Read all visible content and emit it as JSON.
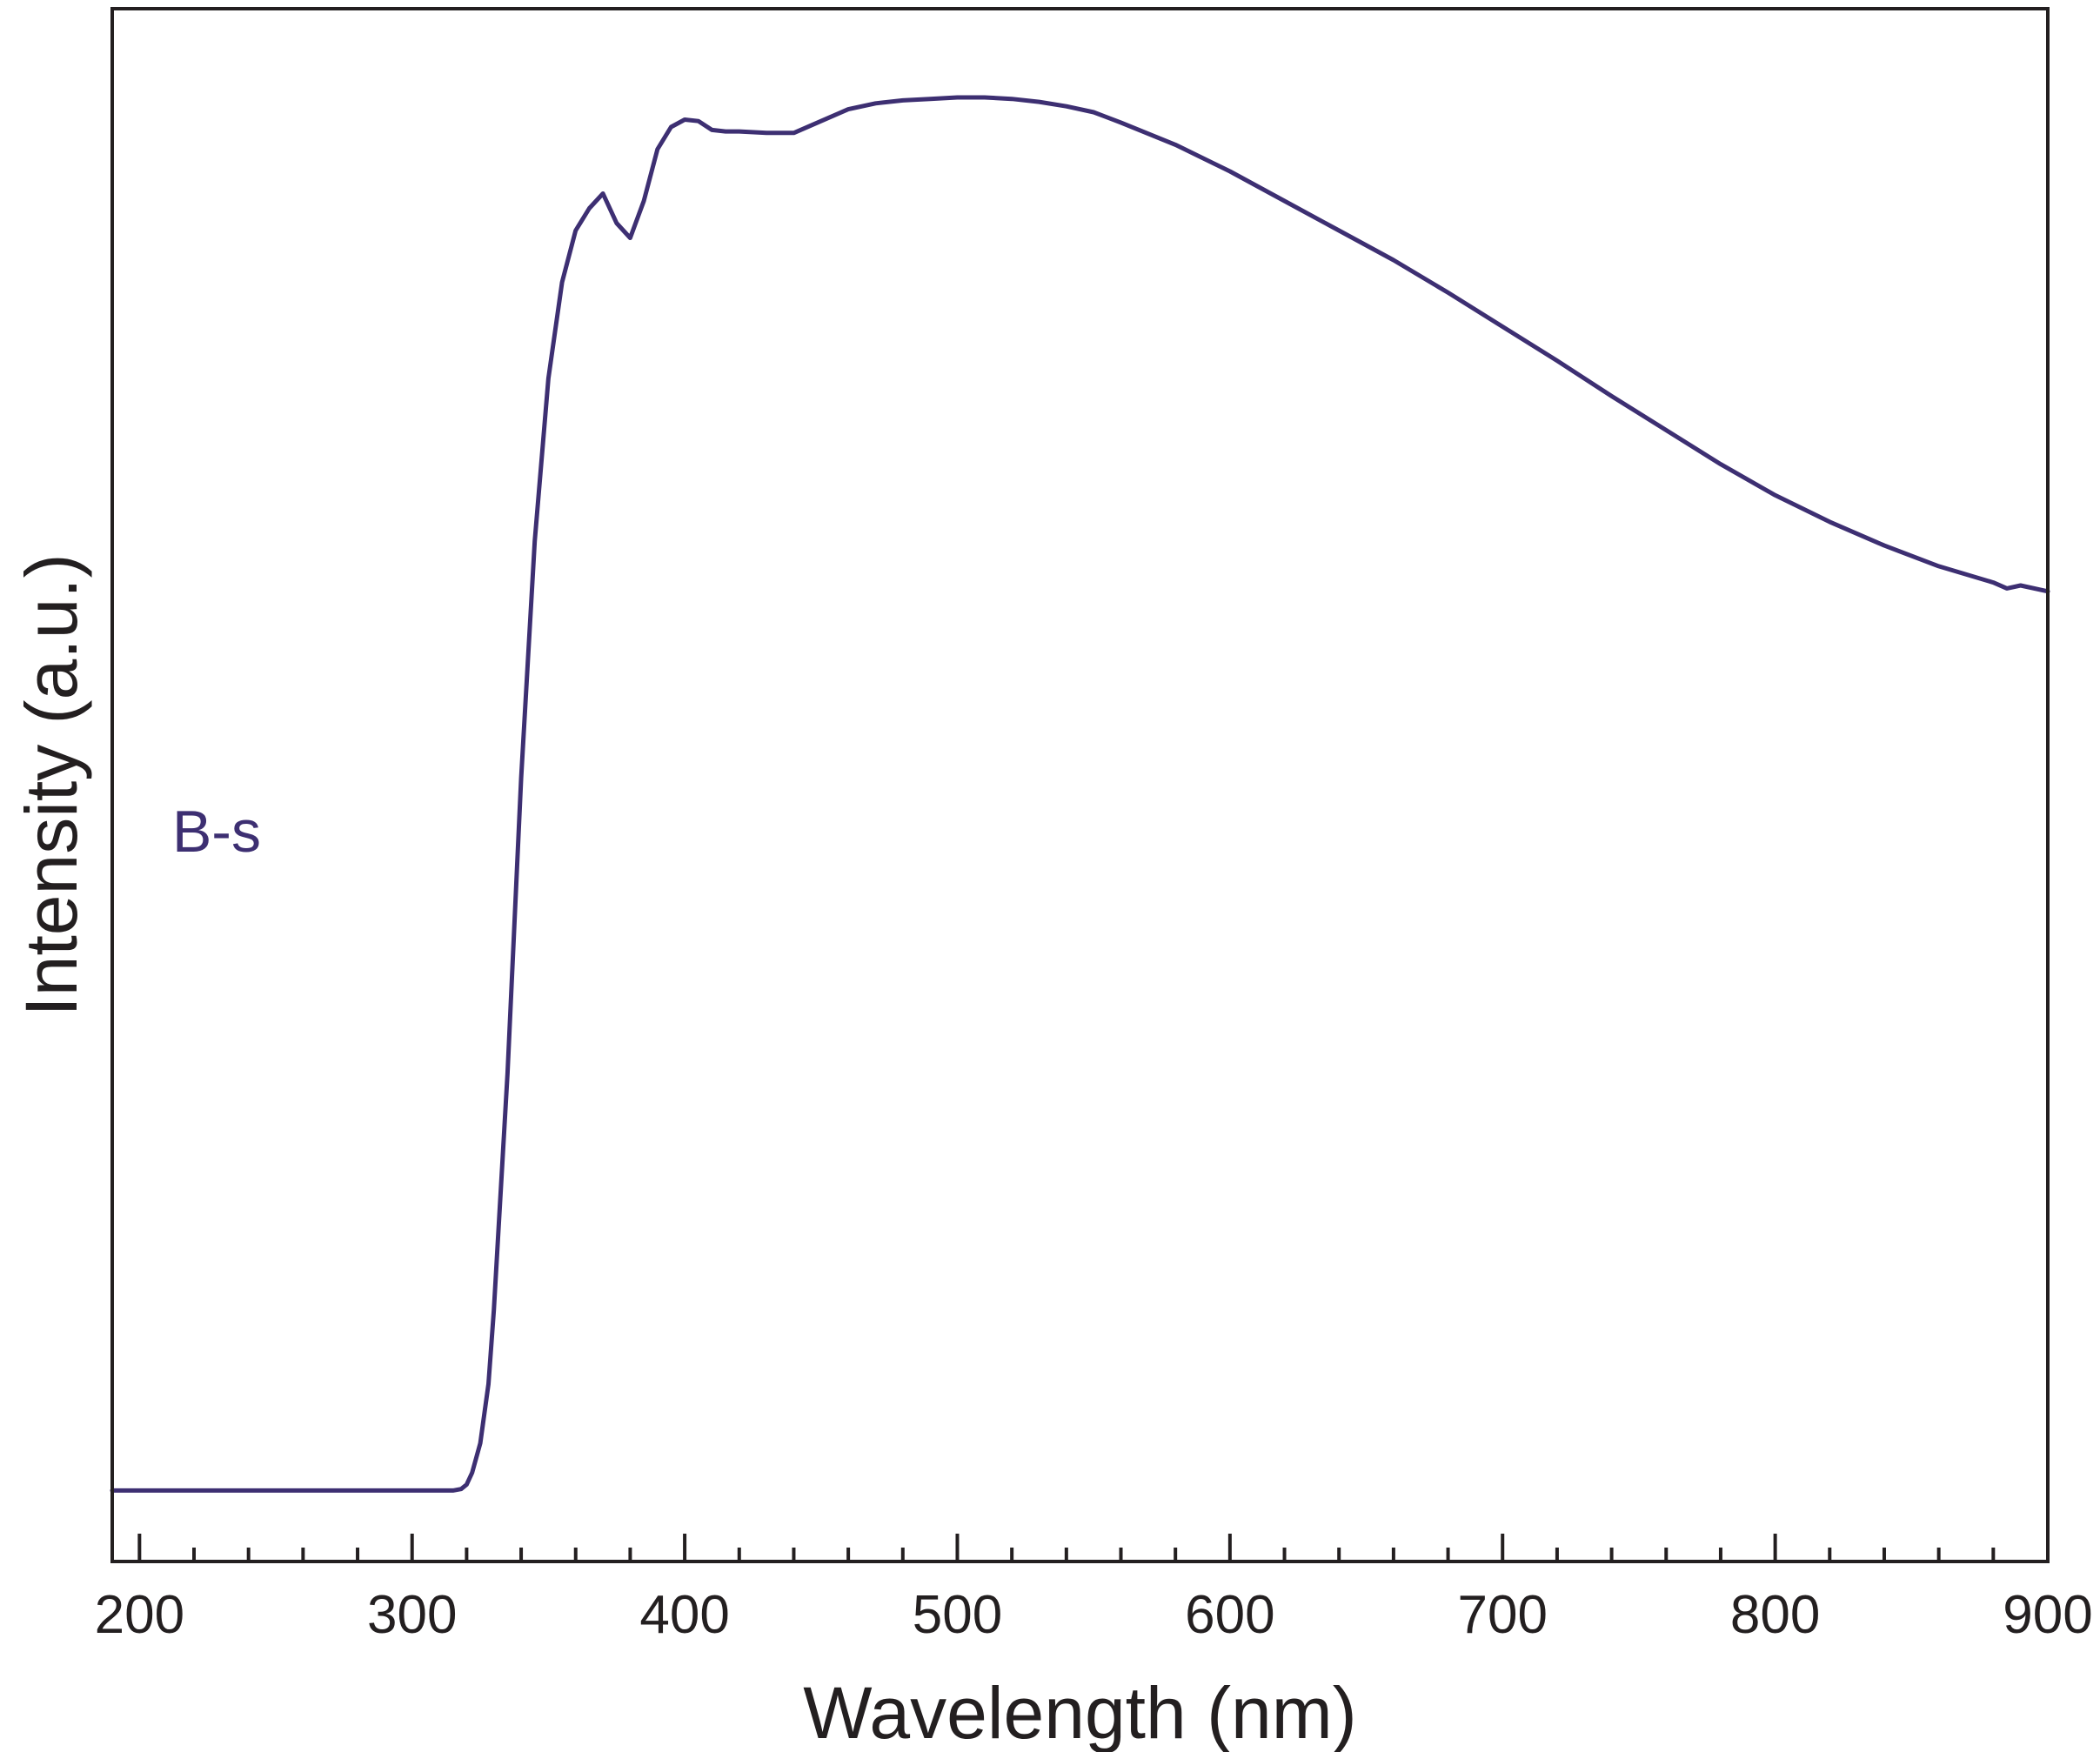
{
  "chart_data": {
    "type": "line",
    "title": "",
    "xlabel": "Wavelength (nm)",
    "ylabel": "Intensity (a.u.)",
    "xlim": [
      190,
      900
    ],
    "ylim": [
      0,
      1.05
    ],
    "x_ticks": [
      200,
      300,
      400,
      500,
      600,
      700,
      800,
      900
    ],
    "x_tick_labels": [
      "200",
      "300",
      "400",
      "500",
      "600",
      "700",
      "800",
      "900"
    ],
    "x_minor_step": 20,
    "y_ticks": [],
    "grid": false,
    "legend": "none",
    "colors": {
      "series": "#3d2f72",
      "axis": "#231f20"
    },
    "series": [
      {
        "name": "B-s",
        "label_at": [
          212,
          0.48
        ],
        "x": [
          190,
          200,
          250,
          300,
          310,
          315,
          318,
          320,
          322,
          325,
          328,
          330,
          335,
          340,
          345,
          350,
          355,
          360,
          365,
          370,
          375,
          380,
          385,
          390,
          395,
          400,
          405,
          410,
          415,
          420,
          430,
          440,
          450,
          460,
          470,
          480,
          490,
          500,
          510,
          520,
          530,
          540,
          550,
          560,
          580,
          600,
          620,
          640,
          660,
          680,
          700,
          720,
          740,
          760,
          780,
          800,
          820,
          840,
          860,
          880,
          885,
          890,
          900
        ],
        "y": [
          0.048,
          0.048,
          0.048,
          0.048,
          0.048,
          0.048,
          0.049,
          0.052,
          0.06,
          0.08,
          0.12,
          0.17,
          0.33,
          0.53,
          0.69,
          0.8,
          0.865,
          0.9,
          0.915,
          0.925,
          0.905,
          0.895,
          0.92,
          0.955,
          0.97,
          0.975,
          0.974,
          0.968,
          0.967,
          0.967,
          0.966,
          0.966,
          0.974,
          0.982,
          0.986,
          0.988,
          0.989,
          0.99,
          0.99,
          0.989,
          0.987,
          0.984,
          0.98,
          0.973,
          0.958,
          0.94,
          0.92,
          0.9,
          0.88,
          0.858,
          0.835,
          0.812,
          0.788,
          0.765,
          0.742,
          0.721,
          0.703,
          0.687,
          0.673,
          0.662,
          0.658,
          0.66,
          0.656
        ]
      }
    ]
  }
}
